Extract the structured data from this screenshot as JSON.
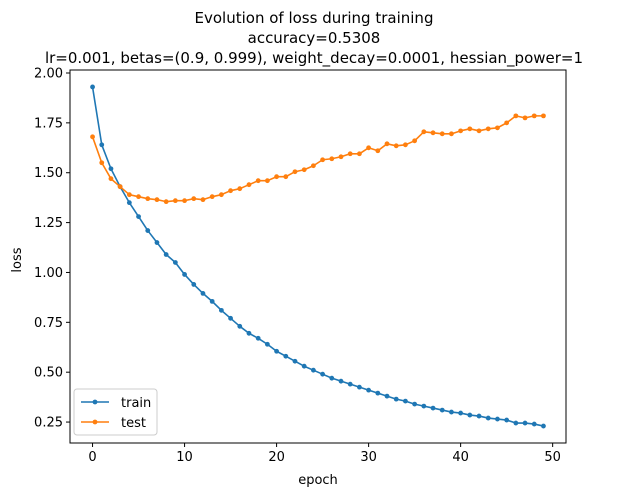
{
  "chart_data": {
    "type": "line",
    "title_lines": [
      "Evolution of loss during training",
      "accuracy=0.5308",
      "lr=0.001, betas=(0.9, 0.999), weight_decay=0.0001, hessian_power=1"
    ],
    "xlabel": "epoch",
    "ylabel": "loss",
    "xlim": [
      -2.45,
      51.45
    ],
    "ylim": [
      0.145,
      2.015
    ],
    "xticks": [
      0,
      10,
      20,
      30,
      40,
      50
    ],
    "xtick_labels": [
      "0",
      "10",
      "20",
      "30",
      "40",
      "50"
    ],
    "yticks": [
      0.25,
      0.5,
      0.75,
      1.0,
      1.25,
      1.5,
      1.75,
      2.0
    ],
    "ytick_labels": [
      "0.25",
      "0.50",
      "0.75",
      "1.00",
      "1.25",
      "1.50",
      "1.75",
      "2.00"
    ],
    "grid": false,
    "legend_location": "lower-left",
    "x": [
      0,
      1,
      2,
      3,
      4,
      5,
      6,
      7,
      8,
      9,
      10,
      11,
      12,
      13,
      14,
      15,
      16,
      17,
      18,
      19,
      20,
      21,
      22,
      23,
      24,
      25,
      26,
      27,
      28,
      29,
      30,
      31,
      32,
      33,
      34,
      35,
      36,
      37,
      38,
      39,
      40,
      41,
      42,
      43,
      44,
      45,
      46,
      47,
      48,
      49
    ],
    "series": [
      {
        "name": "train",
        "color": "#1f77b4",
        "values": [
          1.93,
          1.64,
          1.52,
          1.43,
          1.35,
          1.28,
          1.21,
          1.15,
          1.09,
          1.05,
          0.99,
          0.94,
          0.895,
          0.855,
          0.81,
          0.77,
          0.73,
          0.695,
          0.67,
          0.64,
          0.605,
          0.58,
          0.555,
          0.53,
          0.51,
          0.49,
          0.47,
          0.455,
          0.44,
          0.425,
          0.41,
          0.395,
          0.38,
          0.365,
          0.355,
          0.34,
          0.33,
          0.32,
          0.31,
          0.3,
          0.295,
          0.285,
          0.28,
          0.27,
          0.265,
          0.26,
          0.245,
          0.245,
          0.24,
          0.23
        ]
      },
      {
        "name": "test",
        "color": "#ff7f0e",
        "values": [
          1.68,
          1.55,
          1.47,
          1.43,
          1.39,
          1.38,
          1.37,
          1.365,
          1.355,
          1.36,
          1.36,
          1.37,
          1.365,
          1.38,
          1.39,
          1.41,
          1.42,
          1.44,
          1.46,
          1.46,
          1.48,
          1.48,
          1.505,
          1.515,
          1.535,
          1.565,
          1.57,
          1.58,
          1.595,
          1.595,
          1.625,
          1.61,
          1.645,
          1.635,
          1.64,
          1.66,
          1.705,
          1.7,
          1.695,
          1.695,
          1.71,
          1.72,
          1.71,
          1.72,
          1.725,
          1.75,
          1.785,
          1.775,
          1.785,
          1.785
        ]
      }
    ]
  }
}
